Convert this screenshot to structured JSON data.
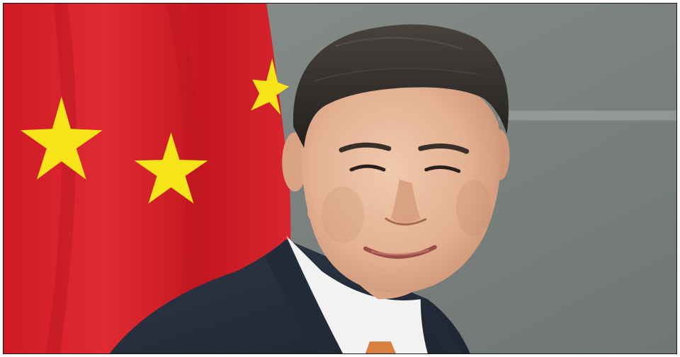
{
  "image": {
    "colors": {
      "flag_red": "#d81f2a",
      "flag_red_shadow": "#b3121c",
      "star_yellow": "#f7e319",
      "wall_gray": "#7d8582",
      "wall_light": "#9aa19d",
      "hair": "#2f2b28",
      "skin": "#e8b99b",
      "skin_shadow": "#c98f70",
      "suit": "#2a3140",
      "shirt": "#f2f2f2",
      "tie": "#d8803f"
    },
    "icons": [
      "flag-star-icon"
    ]
  }
}
